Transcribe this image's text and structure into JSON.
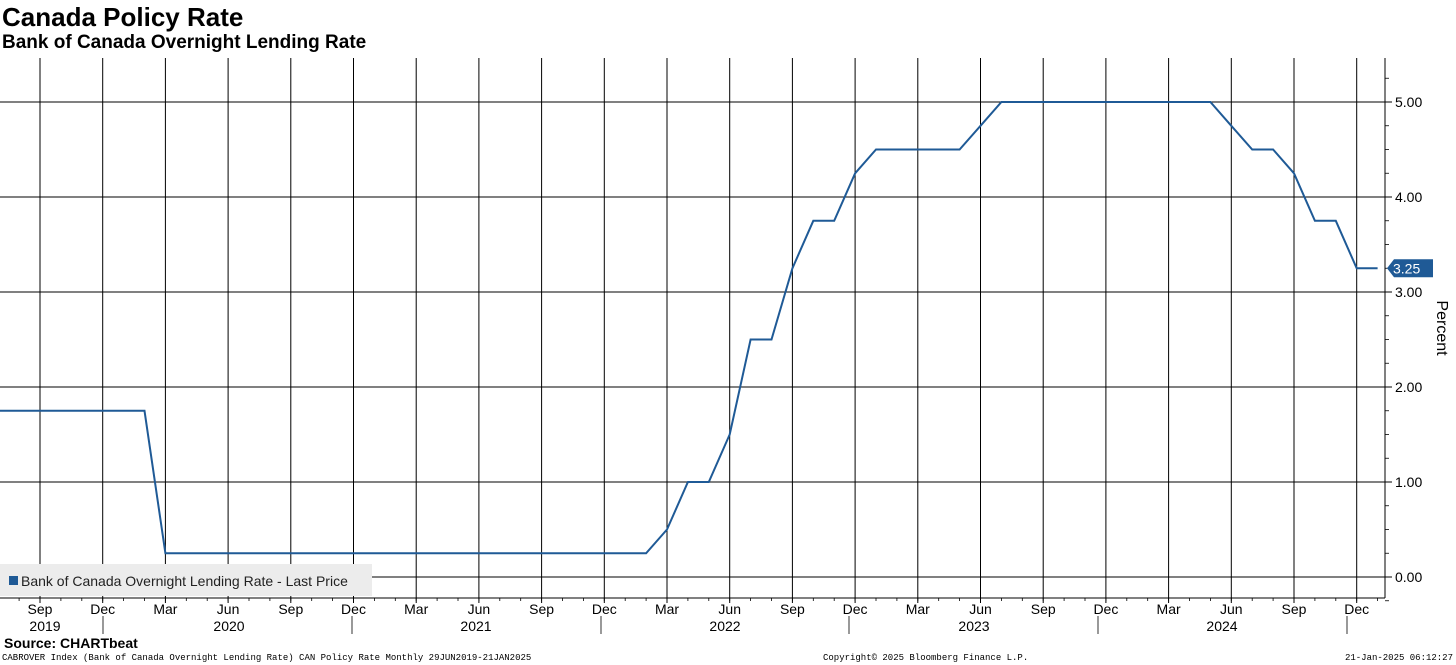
{
  "title": "Canada Policy Rate",
  "subtitle": "Bank of Canada Overnight Lending Rate",
  "source": "Source: CHARTbeat",
  "footer": {
    "left": "CABROVER Index (Bank of Canada Overnight Lending Rate) CAN Policy Rate  Monthly 29JUN2019-21JAN2025",
    "center": "Copyright© 2025 Bloomberg Finance L.P.",
    "right": "21-Jan-2025 06:12:27"
  },
  "colors": {
    "line": "#1f5a96",
    "grid": "#000000",
    "badge": "#1f5a96"
  },
  "chart_data": {
    "type": "line",
    "ylabel": "Percent",
    "ylim": [
      -0.25,
      5.45
    ],
    "yticks": [
      "0.00",
      "1.00",
      "2.00",
      "3.00",
      "4.00",
      "5.00"
    ],
    "grid": true,
    "legend": {
      "label": "Bank of Canada Overnight Lending Rate - Last Price",
      "placement": "bottom-left"
    },
    "last_value_label": "3.25",
    "month_labels": [
      "Sep",
      "Dec",
      "Mar",
      "Jun",
      "Sep",
      "Dec",
      "Mar",
      "Jun",
      "Sep",
      "Dec",
      "Mar",
      "Jun",
      "Sep",
      "Dec",
      "Mar",
      "Jun",
      "Sep",
      "Dec",
      "Mar",
      "Jun",
      "Sep",
      "Dec"
    ],
    "year_labels": [
      "2019",
      "2020",
      "2021",
      "2022",
      "2023",
      "2024"
    ],
    "series": [
      {
        "name": "Bank of Canada Overnight Lending Rate - Last Price",
        "x": [
          "2019-06",
          "2019-07",
          "2019-08",
          "2019-09",
          "2019-10",
          "2019-11",
          "2019-12",
          "2020-01",
          "2020-02",
          "2020-03",
          "2020-04",
          "2020-05",
          "2020-06",
          "2020-07",
          "2020-08",
          "2020-09",
          "2020-10",
          "2020-11",
          "2020-12",
          "2021-01",
          "2021-02",
          "2021-03",
          "2021-04",
          "2021-05",
          "2021-06",
          "2021-07",
          "2021-08",
          "2021-09",
          "2021-10",
          "2021-11",
          "2021-12",
          "2022-01",
          "2022-02",
          "2022-03",
          "2022-04",
          "2022-05",
          "2022-06",
          "2022-07",
          "2022-08",
          "2022-09",
          "2022-10",
          "2022-11",
          "2022-12",
          "2023-01",
          "2023-02",
          "2023-03",
          "2023-04",
          "2023-05",
          "2023-06",
          "2023-07",
          "2023-08",
          "2023-09",
          "2023-10",
          "2023-11",
          "2023-12",
          "2024-01",
          "2024-02",
          "2024-03",
          "2024-04",
          "2024-05",
          "2024-06",
          "2024-07",
          "2024-08",
          "2024-09",
          "2024-10",
          "2024-11",
          "2024-12",
          "2025-01"
        ],
        "values": [
          1.75,
          1.75,
          1.75,
          1.75,
          1.75,
          1.75,
          1.75,
          1.75,
          1.75,
          0.25,
          0.25,
          0.25,
          0.25,
          0.25,
          0.25,
          0.25,
          0.25,
          0.25,
          0.25,
          0.25,
          0.25,
          0.25,
          0.25,
          0.25,
          0.25,
          0.25,
          0.25,
          0.25,
          0.25,
          0.25,
          0.25,
          0.25,
          0.25,
          0.5,
          1.0,
          1.0,
          1.5,
          2.5,
          2.5,
          3.25,
          3.75,
          3.75,
          4.25,
          4.5,
          4.5,
          4.5,
          4.5,
          4.5,
          4.75,
          5.0,
          5.0,
          5.0,
          5.0,
          5.0,
          5.0,
          5.0,
          5.0,
          5.0,
          5.0,
          5.0,
          4.75,
          4.5,
          4.5,
          4.25,
          3.75,
          3.75,
          3.25,
          3.25
        ]
      }
    ]
  }
}
